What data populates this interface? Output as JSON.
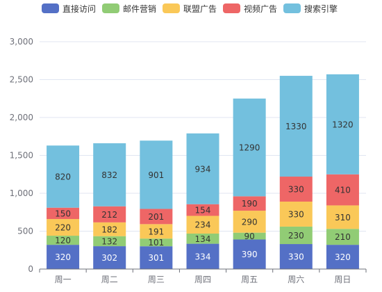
{
  "chart_data": {
    "type": "bar",
    "stacked": true,
    "categories": [
      "周一",
      "周二",
      "周三",
      "周四",
      "周五",
      "周六",
      "周日"
    ],
    "series": [
      {
        "name": "直接访问",
        "color": "#5470c6",
        "label_color": "#ffffff",
        "values": [
          320,
          302,
          301,
          334,
          390,
          330,
          320
        ]
      },
      {
        "name": "邮件营销",
        "color": "#91cc75",
        "label_color": "#333333",
        "values": [
          120,
          132,
          101,
          134,
          90,
          230,
          210
        ]
      },
      {
        "name": "联盟广告",
        "color": "#fac858",
        "label_color": "#333333",
        "values": [
          220,
          182,
          191,
          234,
          290,
          330,
          310
        ]
      },
      {
        "name": "视频广告",
        "color": "#ee6666",
        "label_color": "#333333",
        "values": [
          150,
          212,
          201,
          154,
          190,
          330,
          410
        ]
      },
      {
        "name": "搜索引擎",
        "color": "#73c0de",
        "label_color": "#333333",
        "values": [
          820,
          832,
          901,
          934,
          1290,
          1330,
          1320
        ]
      }
    ],
    "ylim": [
      0,
      3000
    ],
    "yticks": [
      0,
      500,
      1000,
      1500,
      2000,
      2500,
      3000
    ],
    "ytick_labels": [
      "0",
      "500",
      "1,000",
      "1,500",
      "2,000",
      "2,500",
      "3,000"
    ],
    "grid": true,
    "legend_position": "top-center"
  }
}
